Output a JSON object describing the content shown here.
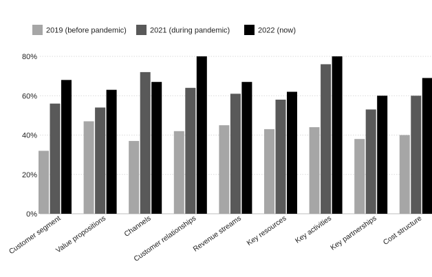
{
  "chart_data": {
    "type": "bar",
    "title": "",
    "xlabel": "",
    "ylabel": "",
    "categories": [
      "Customer segment",
      "Value propositions",
      "Channels",
      "Customer relationships",
      "Revenue streams",
      "Key resources",
      "Key activities",
      "Key partnerships",
      "Cost structure"
    ],
    "series": [
      {
        "name": "2019 (before pandemic)",
        "color": "#a6a6a6",
        "values": [
          32,
          47,
          37,
          42,
          45,
          43,
          44,
          38,
          40
        ]
      },
      {
        "name": "2021 (during pandemic)",
        "color": "#595959",
        "values": [
          56,
          54,
          72,
          64,
          61,
          58,
          76,
          53,
          60
        ]
      },
      {
        "name": "2022 (now)",
        "color": "#000000",
        "values": [
          68,
          63,
          67,
          80,
          67,
          62,
          80,
          60,
          69
        ]
      }
    ],
    "ylim": [
      0,
      80
    ],
    "yticks": [
      "0%",
      "20%",
      "40%",
      "60%",
      "80%"
    ],
    "grid": true,
    "legend_position": "top-left"
  }
}
